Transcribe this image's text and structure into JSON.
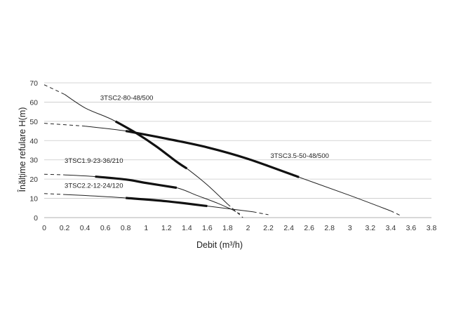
{
  "chart_data": {
    "type": "line",
    "xlabel": "Debit (m³/h)",
    "ylabel": "Înălțime refulare H(m)",
    "xlim": [
      0,
      3.8
    ],
    "ylim": [
      0,
      70
    ],
    "xticks": [
      0,
      0.2,
      0.4,
      0.6,
      0.8,
      1,
      1.2,
      1.4,
      1.6,
      1.8,
      2,
      2.2,
      2.4,
      2.6,
      2.8,
      3,
      3.2,
      3.4,
      3.6,
      3.8
    ],
    "yticks": [
      0,
      10,
      20,
      30,
      40,
      50,
      60,
      70
    ],
    "grid": "horizontal",
    "series": [
      {
        "name": "3TSC2-80-48/500",
        "x": [
          0,
          0.2,
          0.4,
          0.6,
          0.7,
          0.9,
          1.1,
          1.3,
          1.4,
          1.6,
          1.8,
          1.95
        ],
        "y": [
          69,
          64,
          57,
          52.5,
          50,
          44,
          37,
          29,
          25.5,
          17,
          7,
          0
        ],
        "optimal_range": [
          0.7,
          1.4
        ]
      },
      {
        "name": "3TSC3.5-50-48/500",
        "x": [
          0,
          0.4,
          0.8,
          1.2,
          1.6,
          2.0,
          2.5,
          3.0,
          3.4,
          3.5
        ],
        "y": [
          49,
          47.5,
          45,
          41,
          36.5,
          30.5,
          21,
          11.5,
          3.5,
          1
        ],
        "optimal_range": [
          0.8,
          2.5
        ]
      },
      {
        "name": "3TSC1.9-23-36/210",
        "x": [
          0,
          0.2,
          0.5,
          0.8,
          1.0,
          1.3,
          1.5,
          1.7,
          1.85,
          1.92
        ],
        "y": [
          22.5,
          22.2,
          21.3,
          19.8,
          18,
          15.5,
          11.5,
          7.5,
          4,
          2
        ],
        "optimal_range": [
          0.5,
          1.3
        ]
      },
      {
        "name": "3TSC2.2-12-24/120",
        "x": [
          0,
          0.2,
          0.5,
          0.8,
          1.2,
          1.6,
          1.9,
          2.05,
          2.2
        ],
        "y": [
          12.5,
          12,
          11.2,
          10.2,
          8.5,
          6,
          4,
          3,
          1.5
        ],
        "optimal_range": [
          0.8,
          1.6
        ]
      }
    ]
  }
}
